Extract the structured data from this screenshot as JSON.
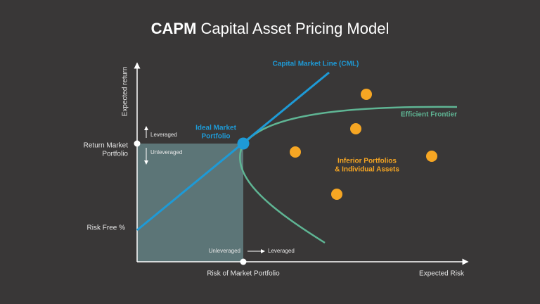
{
  "title": {
    "bold": "CAPM",
    "rest": "Capital Asset Pricing Model"
  },
  "axes": {
    "y_label": "Expected return",
    "x_label": "Expected Risk",
    "return_market_portfolio": [
      "Return Market",
      "Portfolio"
    ],
    "risk_free": "Risk Free %",
    "risk_of_market_portfolio": "Risk of Market Portfolio"
  },
  "labels": {
    "cml": "Capital Market Line (CML)",
    "efficient_frontier": "Efficient Frontier",
    "ideal_market_portfolio": [
      "Ideal Market",
      "Portfolio"
    ],
    "inferior_portfolios": [
      "Inferior Portfolios",
      "& Individual Assets"
    ],
    "vertical_leveraged": "Leveraged",
    "vertical_unleveraged": "Unleveraged",
    "horizontal_unleveraged": "Unleveraged",
    "horizontal_leveraged": "Leveraged"
  }
}
